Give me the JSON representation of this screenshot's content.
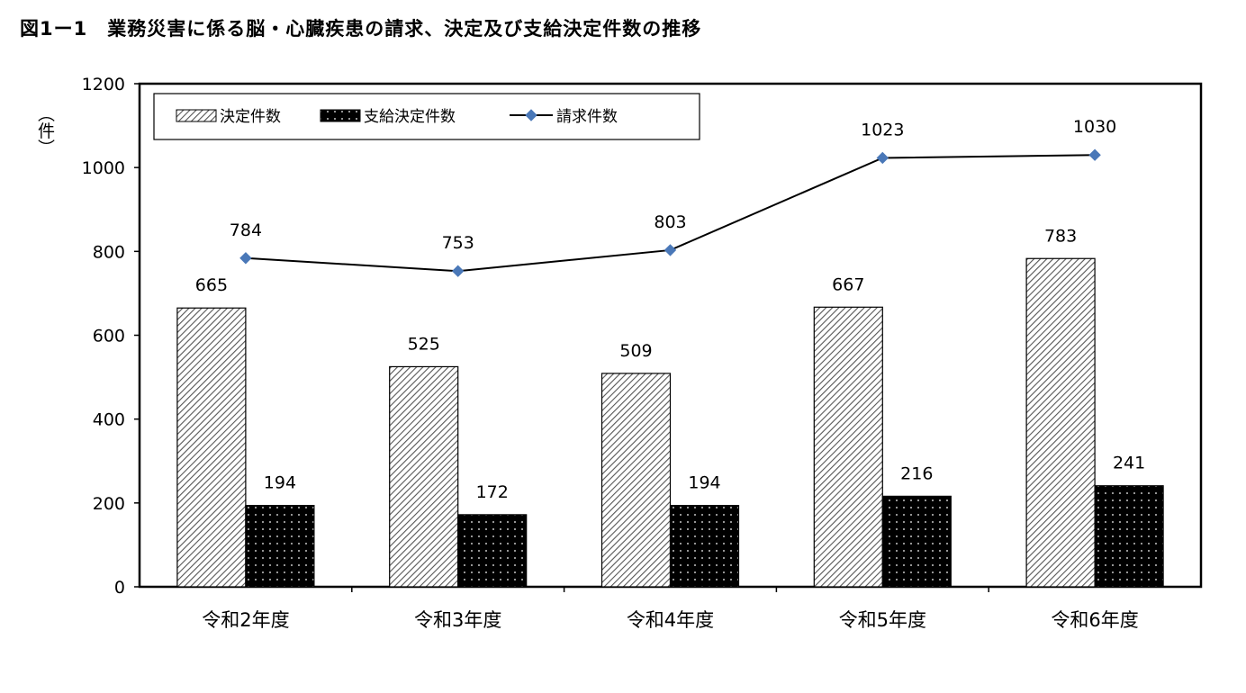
{
  "title": "図1ー1　業務災害に係る脳・心臓疾患の請求、決定及び支給決定件数の推移",
  "chart_data": {
    "type": "bar",
    "title": "図1ー1　業務災害に係る脳・心臓疾患の請求、決定及び支給決定件数の推移",
    "ylabel": "（件）",
    "xlabel": "",
    "categories": [
      "令和2年度",
      "令和3年度",
      "令和4年度",
      "令和5年度",
      "令和6年度"
    ],
    "ylim": [
      0,
      1200
    ],
    "yticks": [
      0,
      200,
      400,
      600,
      800,
      1000,
      1200
    ],
    "series": [
      {
        "name": "決定件数",
        "kind": "bar",
        "pattern": "diagonal-hatch",
        "values": [
          665,
          525,
          509,
          667,
          783
        ]
      },
      {
        "name": "支給決定件数",
        "kind": "bar",
        "pattern": "black-dotted",
        "values": [
          194,
          172,
          194,
          216,
          241
        ]
      },
      {
        "name": "請求件数",
        "kind": "line",
        "marker": "diamond",
        "color": "#4a78b8",
        "values": [
          784,
          753,
          803,
          1023,
          1030
        ]
      }
    ],
    "legend": {
      "position": "top-left-inside"
    },
    "grid": false
  }
}
